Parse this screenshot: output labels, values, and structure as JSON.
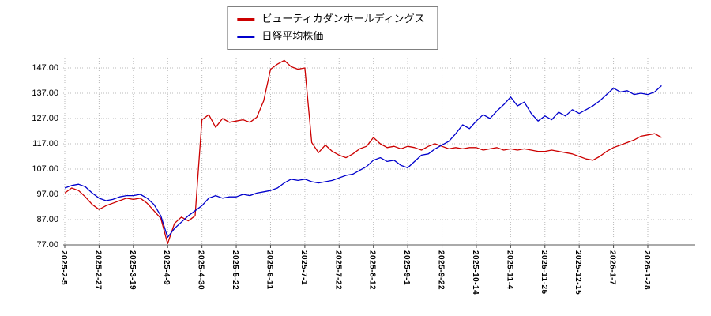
{
  "legend": {
    "items": [
      {
        "label": "ビューティカダンホールディングス",
        "color": "#cc0000"
      },
      {
        "label": "日経平均株価",
        "color": "#0000cc"
      }
    ]
  },
  "chart_data": {
    "type": "line",
    "title": "",
    "xlabel": "",
    "ylabel": "",
    "grid": true,
    "legend_position": "top-center",
    "ylim": [
      77,
      152
    ],
    "y_ticks": [
      "77.00",
      "87.00",
      "97.00",
      "107.00",
      "117.00",
      "127.00",
      "137.00",
      "147.00"
    ],
    "x_tick_labels": [
      "2025-2-5",
      "2025-2-27",
      "2025-3-19",
      "2025-4-9",
      "2025-4-30",
      "2025-5-22",
      "2025-6-11",
      "2025-7-1",
      "2025-7-22",
      "2025-8-12",
      "2025-9-1",
      "2025-9-22",
      "2025-10-14",
      "2025-11-4",
      "2025-11-25",
      "2025-12-15",
      "2026-1-7",
      "2026-1-28"
    ],
    "points_per_tick": 5,
    "series": [
      {
        "name": "ビューティカダンホールディングス",
        "color": "#cc0000",
        "values": [
          97.5,
          99.5,
          98.5,
          96.0,
          93.0,
          91.0,
          92.5,
          93.5,
          94.5,
          95.5,
          95.0,
          95.5,
          93.5,
          90.5,
          87.5,
          77.5,
          85.5,
          88.0,
          86.5,
          88.5,
          126.5,
          128.5,
          123.5,
          127.0,
          125.5,
          126.0,
          126.5,
          125.5,
          127.5,
          134.0,
          146.5,
          148.5,
          150.0,
          147.5,
          146.5,
          147.0,
          117.5,
          113.5,
          116.5,
          114.0,
          112.5,
          111.5,
          113.0,
          115.0,
          116.0,
          119.5,
          117.0,
          115.5,
          116.0,
          115.0,
          116.0,
          115.5,
          114.5,
          116.0,
          117.0,
          116.0,
          115.0,
          115.5,
          115.0,
          115.5,
          115.5,
          114.5,
          115.0,
          115.5,
          114.5,
          115.0,
          114.5,
          115.0,
          114.5,
          114.0,
          114.0,
          114.5,
          114.0,
          113.5,
          113.0,
          112.0,
          111.0,
          110.5,
          112.0,
          114.0,
          115.5,
          116.5,
          117.5,
          118.5,
          120.0,
          120.5,
          121.0,
          119.5
        ]
      },
      {
        "name": "日経平均株価",
        "color": "#0000cc",
        "values": [
          99.5,
          100.5,
          101.0,
          100.0,
          97.5,
          95.5,
          94.5,
          95.0,
          96.0,
          96.5,
          96.5,
          97.0,
          95.5,
          93.0,
          88.5,
          80.0,
          83.5,
          86.0,
          88.5,
          90.5,
          92.5,
          95.5,
          96.5,
          95.5,
          96.0,
          96.0,
          97.0,
          96.5,
          97.5,
          98.0,
          98.5,
          99.5,
          101.5,
          103.0,
          102.5,
          103.0,
          102.0,
          101.5,
          102.0,
          102.5,
          103.5,
          104.5,
          105.0,
          106.5,
          108.0,
          110.5,
          111.5,
          110.0,
          110.5,
          108.5,
          107.5,
          110.0,
          112.5,
          113.0,
          115.0,
          116.5,
          118.0,
          121.0,
          124.5,
          123.0,
          126.0,
          128.5,
          127.0,
          130.0,
          132.5,
          135.5,
          132.0,
          133.5,
          129.0,
          126.0,
          128.0,
          126.5,
          129.5,
          128.0,
          130.5,
          129.0,
          130.5,
          132.0,
          134.0,
          136.5,
          139.0,
          137.5,
          138.0,
          136.5,
          137.0,
          136.5,
          137.5,
          140.0
        ]
      }
    ]
  }
}
